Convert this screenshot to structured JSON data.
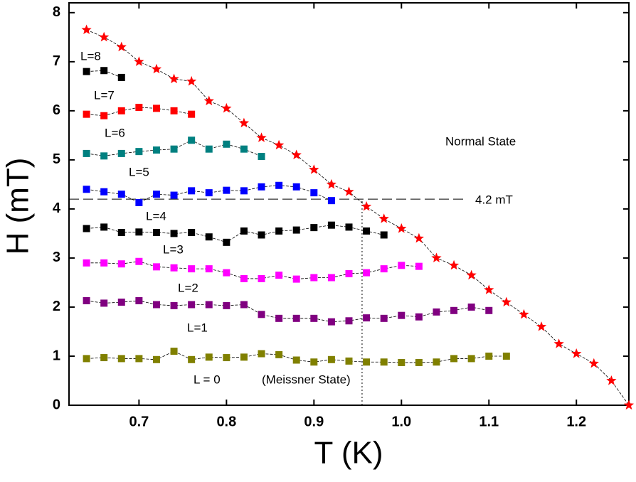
{
  "chart_data": {
    "type": "scatter",
    "xlabel": "T (K)",
    "ylabel": "H (mT)",
    "xlim": [
      0.62,
      1.26
    ],
    "ylim": [
      0,
      8.2
    ],
    "xticks": [
      0.7,
      0.8,
      0.9,
      {
        "value": 1,
        "label": "1.0"
      },
      1.1,
      1.2
    ],
    "yticks": [
      0,
      1,
      2,
      3,
      4,
      5,
      6,
      7,
      8
    ],
    "x": [
      0.64,
      0.66,
      0.68,
      0.7,
      0.72,
      0.74,
      0.76,
      0.78,
      0.8,
      0.82,
      0.84,
      0.86,
      0.88,
      0.9,
      0.92,
      0.94,
      0.96,
      0.98,
      1.0,
      1.02,
      1.04,
      1.06,
      1.08,
      1.1,
      1.12,
      1.14,
      1.16,
      1.18,
      1.2,
      1.22,
      1.24,
      1.26
    ],
    "series": [
      {
        "color": "#ff0000",
        "marker": "star",
        "values": [
          7.65,
          7.5,
          7.3,
          7.0,
          6.85,
          6.65,
          6.6,
          6.2,
          6.05,
          5.75,
          5.45,
          5.3,
          5.1,
          4.8,
          4.5,
          4.35,
          4.05,
          3.8,
          3.6,
          3.4,
          3.0,
          2.85,
          2.65,
          2.35,
          2.1,
          1.85,
          1.6,
          1.25,
          1.05,
          0.85,
          0.5,
          0
        ]
      },
      {
        "color": "#808000",
        "marker": "square",
        "values": [
          0.95,
          0.97,
          0.95,
          0.95,
          0.93,
          1.1,
          0.93,
          0.98,
          0.97,
          0.98,
          1.05,
          1.03,
          0.92,
          0.88,
          0.93,
          0.9,
          0.88,
          0.88,
          0.87,
          0.87,
          0.88,
          0.95,
          0.95,
          1.0,
          1.0,
          null,
          null,
          null,
          null,
          null,
          null,
          null
        ]
      },
      {
        "color": "#800080",
        "marker": "square",
        "values": [
          2.13,
          2.08,
          2.1,
          2.13,
          2.05,
          2.03,
          2.05,
          2.05,
          2.03,
          2.05,
          1.85,
          1.77,
          1.77,
          1.77,
          1.7,
          1.72,
          1.78,
          1.77,
          1.83,
          1.8,
          1.9,
          1.93,
          2.0,
          1.93,
          null,
          null,
          null,
          null,
          null,
          null,
          null,
          null
        ]
      },
      {
        "color": "#ff00ff",
        "marker": "square",
        "values": [
          2.9,
          2.9,
          2.88,
          2.93,
          2.82,
          2.8,
          2.78,
          2.78,
          2.7,
          2.58,
          2.58,
          2.65,
          2.57,
          2.6,
          2.6,
          2.68,
          2.7,
          2.78,
          2.85,
          2.83,
          null,
          null,
          null,
          null,
          null,
          null,
          null,
          null,
          null,
          null,
          null,
          null
        ]
      },
      {
        "color": "#000000",
        "marker": "square",
        "values": [
          3.6,
          3.63,
          3.52,
          3.53,
          3.52,
          3.5,
          3.52,
          3.43,
          3.32,
          3.55,
          3.47,
          3.55,
          3.57,
          3.62,
          3.67,
          3.63,
          3.55,
          3.47,
          null,
          null,
          null,
          null,
          null,
          null,
          null,
          null,
          null,
          null,
          null,
          null,
          null,
          null
        ]
      },
      {
        "color": "#0000ff",
        "marker": "square",
        "values": [
          4.4,
          4.35,
          4.3,
          4.13,
          4.3,
          4.28,
          4.37,
          4.33,
          4.38,
          4.37,
          4.45,
          4.48,
          4.45,
          4.33,
          4.17,
          null,
          null,
          null,
          null,
          null,
          null,
          null,
          null,
          null,
          null,
          null,
          null,
          null,
          null,
          null,
          null,
          null
        ]
      },
      {
        "color": "#008080",
        "marker": "square",
        "values": [
          5.13,
          5.08,
          5.13,
          5.17,
          5.2,
          5.22,
          5.4,
          5.22,
          5.32,
          5.22,
          5.07,
          null,
          null,
          null,
          null,
          null,
          null,
          null,
          null,
          null,
          null,
          null,
          null,
          null,
          null,
          null,
          null,
          null,
          null,
          null,
          null,
          null
        ]
      },
      {
        "color": "#ff0000",
        "marker": "square",
        "values": [
          5.93,
          5.9,
          6.0,
          6.07,
          6.05,
          6.0,
          5.93,
          null,
          null,
          null,
          null,
          null,
          null,
          null,
          null,
          null,
          null,
          null,
          null,
          null,
          null,
          null,
          null,
          null,
          null,
          null,
          null,
          null,
          null,
          null,
          null,
          null
        ]
      },
      {
        "color": "#000000",
        "marker": "square",
        "values": [
          6.8,
          6.82,
          6.68,
          null,
          null,
          null,
          null,
          null,
          null,
          null,
          null,
          null,
          null,
          null,
          null,
          null,
          null,
          null,
          null,
          null,
          null,
          null,
          null,
          null,
          null,
          null,
          null,
          null,
          null,
          null,
          null,
          null
        ]
      }
    ],
    "reference": {
      "h": 4.2,
      "t": 0.955,
      "label": "4.2 mT"
    },
    "annotations": [
      "Normal State",
      "L=8",
      "L=7",
      "L=6",
      "L=5",
      "L=4",
      "L=3",
      "L=2",
      "L=1",
      "L = 0",
      "(Meissner State)"
    ]
  }
}
